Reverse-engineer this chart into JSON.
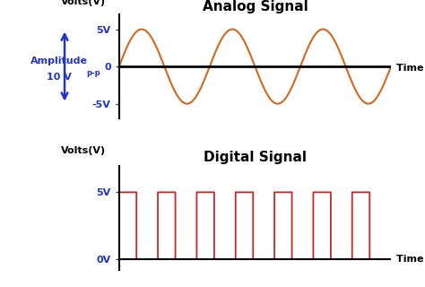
{
  "analog_title": "Analog Signal",
  "digital_title": "Digital Signal",
  "analog_ylabel": "Volts(V)",
  "digital_ylabel": "Volts(V)",
  "xlabel": "Time (t)",
  "analog_yticks": [
    -5,
    0,
    5
  ],
  "analog_ytick_labels": [
    "-5V",
    "0",
    "5V"
  ],
  "digital_yticks": [
    0,
    5
  ],
  "digital_ytick_labels": [
    "0V",
    "5V"
  ],
  "analog_amplitude": 5,
  "analog_color": "#d2691e",
  "digital_color": "#cd2626",
  "axis_color": "#000000",
  "tick_color": "#2233cc",
  "title_color": "#000000",
  "amplitude_arrow_color": "#2233cc",
  "amplitude_text_color": "#2233cc",
  "background_color": "#ffffff",
  "fig_width": 4.74,
  "fig_height": 3.2,
  "dpi": 100
}
